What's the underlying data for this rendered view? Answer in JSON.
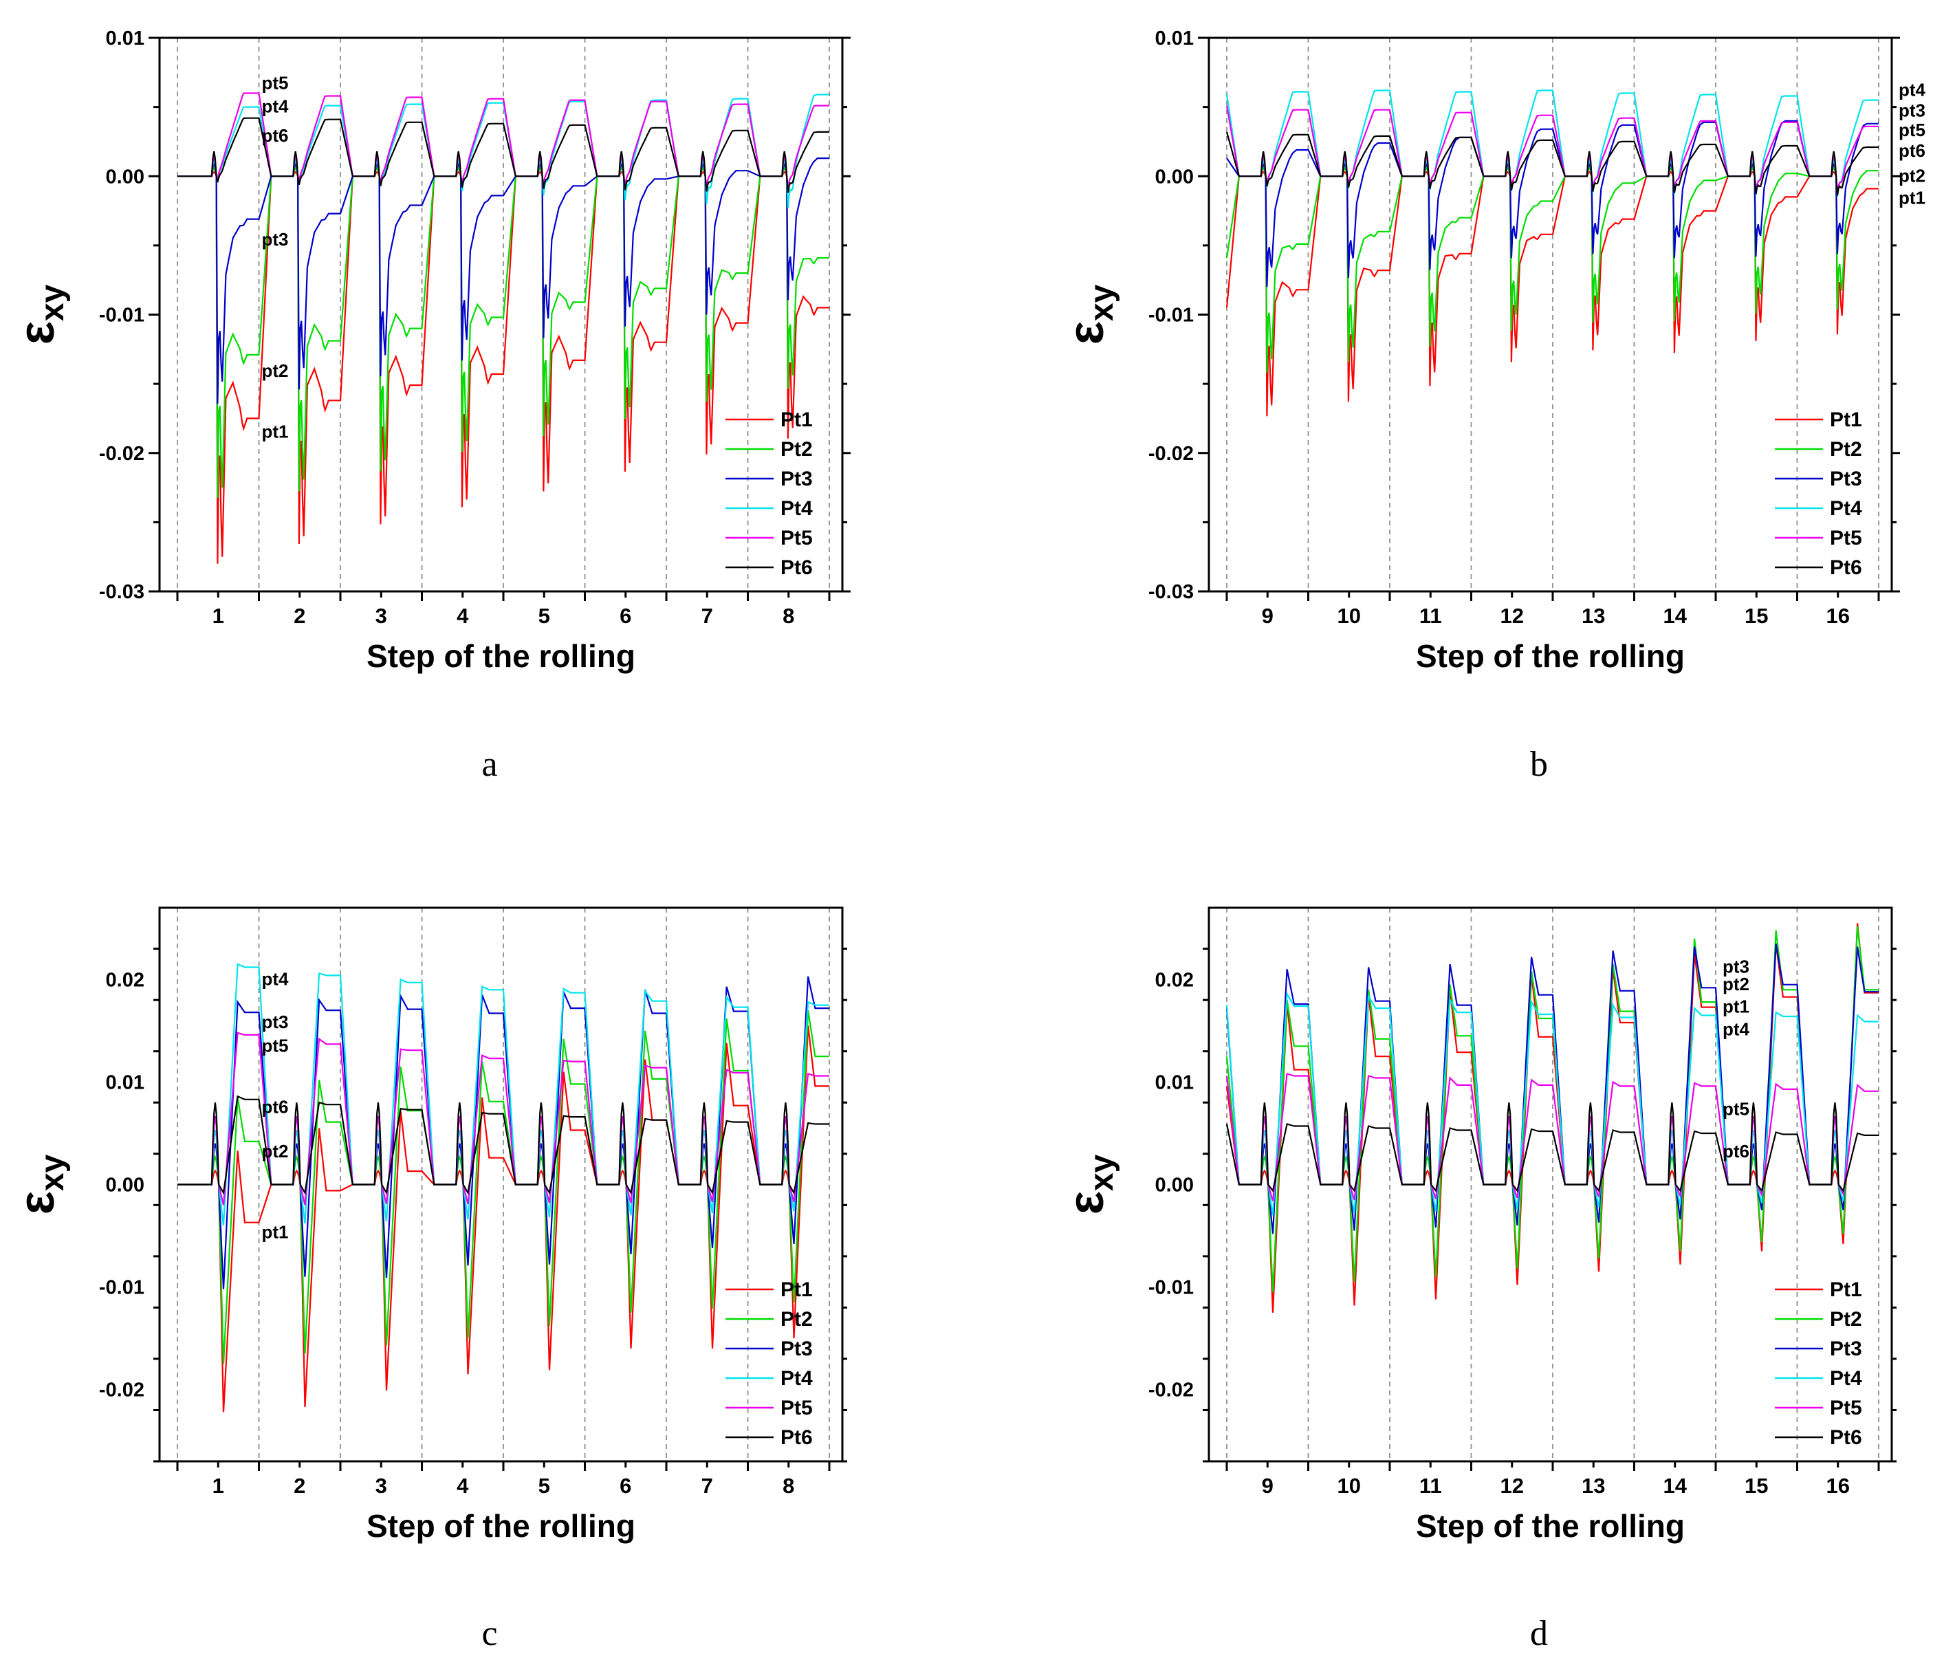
{
  "figure": {
    "panel_letters": [
      "a",
      "b",
      "c",
      "d"
    ]
  },
  "colors": {
    "Pt1": "#ff0000",
    "Pt2": "#00dd00",
    "Pt3": "#0000cc",
    "Pt4": "#00e5ee",
    "Pt5": "#ee00ee",
    "Pt6": "#000000",
    "axis": "#000000",
    "step_divider": "#999999"
  },
  "chart_data": [
    {
      "id": "a",
      "type": "line",
      "title": "",
      "ylabel_main": "ε",
      "ylabel_sub": "xy",
      "xlabel": "Step of the rolling",
      "ylim": [
        -0.03,
        0.01
      ],
      "yticks": [
        0.01,
        0.0,
        -0.01,
        -0.02,
        -0.03
      ],
      "ytick_labels": [
        "0.01",
        "0.00",
        "-0.01",
        "-0.02",
        "-0.03"
      ],
      "steps": [
        "1",
        "2",
        "3",
        "4",
        "5",
        "6",
        "7",
        "8"
      ],
      "legend": [
        "Pt1",
        "Pt2",
        "Pt3",
        "Pt4",
        "Pt5",
        "Pt6"
      ],
      "legend_position": "bottom-right",
      "start_levels": [
        0,
        0,
        0,
        0,
        0,
        0
      ],
      "series": [
        {
          "name": "Pt1",
          "min": [
            -0.0295,
            -0.028,
            -0.0265,
            -0.0252,
            -0.024,
            -0.0225,
            -0.0212,
            -0.02
          ],
          "final": [
            -0.0175,
            -0.0162,
            -0.0151,
            -0.0143,
            -0.0133,
            -0.012,
            -0.0106,
            -0.0095
          ]
        },
        {
          "name": "Pt2",
          "min": [
            -0.0245,
            -0.024,
            -0.0225,
            -0.021,
            -0.0198,
            -0.0185,
            -0.0172,
            -0.0162
          ],
          "final": [
            -0.0129,
            -0.0119,
            -0.011,
            -0.0102,
            -0.0091,
            -0.0081,
            -0.007,
            -0.0059
          ]
        },
        {
          "name": "Pt3",
          "min": [
            -0.0174,
            -0.0163,
            -0.0153,
            -0.0141,
            -0.0124,
            -0.0115,
            -0.0106,
            -0.0095
          ],
          "final": [
            -0.0031,
            -0.0027,
            -0.0021,
            -0.0014,
            -0.0007,
            -0.0002,
            0.0004,
            0.0013
          ]
        },
        {
          "name": "Pt4",
          "min": [
            -0.0002,
            -0.0005,
            -0.0008,
            -0.0012,
            -0.0015,
            -0.0019,
            -0.0022,
            -0.0025
          ],
          "final": [
            0.005,
            0.0051,
            0.0052,
            0.0053,
            0.0054,
            0.0055,
            0.0056,
            0.0059
          ]
        },
        {
          "name": "Pt5",
          "min": [
            -0.0002,
            -0.0004,
            -0.0005,
            -0.0006,
            -0.0007,
            -0.0008,
            -0.0009,
            -0.001
          ],
          "final": [
            0.006,
            0.0058,
            0.0057,
            0.0056,
            0.0055,
            0.0054,
            0.0052,
            0.0051
          ]
        },
        {
          "name": "Pt6",
          "min": [
            -0.0005,
            -0.0007,
            -0.0008,
            -0.0009,
            -0.001,
            -0.0011,
            -0.0012,
            -0.0013
          ],
          "final": [
            0.0042,
            0.0041,
            0.0039,
            0.0038,
            0.0037,
            0.0035,
            0.0033,
            0.0032
          ]
        }
      ],
      "annotations": [
        {
          "text": "pt5",
          "step": 1,
          "value": 0.0067
        },
        {
          "text": "pt4",
          "step": 1,
          "value": 0.005
        },
        {
          "text": "pt6",
          "step": 1,
          "value": 0.0029
        },
        {
          "text": "pt3",
          "step": 1,
          "value": -0.0046
        },
        {
          "text": "pt2",
          "step": 1,
          "value": -0.0141
        },
        {
          "text": "pt1",
          "step": 1,
          "value": -0.0185
        }
      ]
    },
    {
      "id": "b",
      "type": "line",
      "title": "",
      "ylabel_main": "ε",
      "ylabel_sub": "xy",
      "xlabel": "Step of the rolling",
      "ylim": [
        -0.03,
        0.01
      ],
      "yticks": [
        0.01,
        0.0,
        -0.01,
        -0.02,
        -0.03
      ],
      "ytick_labels": [
        "0.01",
        "0.00",
        "-0.01",
        "-0.02",
        "-0.03"
      ],
      "steps": [
        "9",
        "10",
        "11",
        "12",
        "13",
        "14",
        "15",
        "16"
      ],
      "legend": [
        "Pt1",
        "Pt2",
        "Pt3",
        "Pt4",
        "Pt5",
        "Pt6"
      ],
      "legend_position": "bottom-right",
      "start_levels": [
        -0.0095,
        -0.0059,
        0.0013,
        0.0059,
        0.0051,
        0.0032
      ],
      "series": [
        {
          "name": "Pt1",
          "min": [
            -0.0183,
            -0.0172,
            -0.016,
            -0.0142,
            -0.0133,
            -0.0135,
            -0.0126,
            -0.0121
          ],
          "final": [
            -0.0082,
            -0.0068,
            -0.0056,
            -0.0042,
            -0.0031,
            -0.0025,
            -0.0015,
            -0.0009
          ]
        },
        {
          "name": "Pt2",
          "min": [
            -0.015,
            -0.0142,
            -0.013,
            -0.0118,
            -0.0112,
            -0.0111,
            -0.0105,
            -0.0102
          ],
          "final": [
            -0.0049,
            -0.004,
            -0.003,
            -0.0018,
            -0.0005,
            -0.0003,
            0.0002,
            0.0004
          ]
        },
        {
          "name": "Pt3",
          "min": [
            -0.0085,
            -0.0078,
            -0.0072,
            -0.0063,
            -0.006,
            -0.0063,
            -0.0062,
            -0.006
          ],
          "final": [
            0.0019,
            0.0024,
            0.0028,
            0.0034,
            0.0037,
            0.0039,
            0.004,
            0.0038
          ]
        },
        {
          "name": "Pt4",
          "min": [
            -0.0009,
            -0.001,
            -0.0011,
            -0.0012,
            -0.0013,
            -0.0014,
            -0.0015,
            -0.0016
          ],
          "final": [
            0.0061,
            0.0062,
            0.0061,
            0.0062,
            0.006,
            0.0059,
            0.0058,
            0.0055
          ]
        },
        {
          "name": "Pt5",
          "min": [
            -0.0006,
            -0.0007,
            -0.0008,
            -0.0009,
            -0.001,
            -0.0011,
            -0.0012,
            -0.0013
          ],
          "final": [
            0.0048,
            0.0048,
            0.0046,
            0.0044,
            0.0042,
            0.004,
            0.0039,
            0.0036
          ]
        },
        {
          "name": "Pt6",
          "min": [
            -0.0008,
            -0.0009,
            -0.001,
            -0.0011,
            -0.0012,
            -0.0013,
            -0.0014,
            -0.0015
          ],
          "final": [
            0.003,
            0.0029,
            0.0028,
            0.0026,
            0.0025,
            0.0023,
            0.0022,
            0.0021
          ]
        }
      ],
      "annotations": [
        {
          "text": "pt4",
          "step": 8,
          "value": 0.0062
        },
        {
          "text": "pt3",
          "step": 8,
          "value": 0.0047
        },
        {
          "text": "pt5",
          "step": 8,
          "value": 0.0033
        },
        {
          "text": "pt6",
          "step": 8,
          "value": 0.0018
        },
        {
          "text": "pt2",
          "step": 8,
          "value": 0.0
        },
        {
          "text": "pt1",
          "step": 8,
          "value": -0.0016
        }
      ]
    },
    {
      "id": "c",
      "type": "line",
      "title": "",
      "ylabel_main": "ε",
      "ylabel_sub": "xy",
      "xlabel": "Step of the rolling",
      "ylim": [
        -0.027,
        0.027
      ],
      "yticks": [
        0.02,
        0.01,
        0.0,
        -0.01,
        -0.02
      ],
      "ytick_labels": [
        "0.02",
        "0.01",
        "0.00",
        "-0.01",
        "-0.02"
      ],
      "steps": [
        "1",
        "2",
        "3",
        "4",
        "5",
        "6",
        "7",
        "8"
      ],
      "legend": [
        "Pt1",
        "Pt2",
        "Pt3",
        "Pt4",
        "Pt5",
        "Pt6"
      ],
      "legend_position": "bottom-right",
      "start_levels": [
        0,
        0,
        0,
        0,
        0,
        0
      ],
      "series": [
        {
          "name": "Pt1",
          "min": [
            -0.0222,
            -0.0217,
            -0.0201,
            -0.0185,
            -0.0181,
            -0.016,
            -0.016,
            -0.015
          ],
          "peak": [
            0.0033,
            0.0055,
            0.0072,
            0.0085,
            0.011,
            0.0122,
            0.0138,
            0.0155
          ],
          "final": [
            -0.0037,
            -0.0006,
            0.0013,
            0.0026,
            0.0053,
            0.0063,
            0.0077,
            0.0096
          ]
        },
        {
          "name": "Pt2",
          "min": [
            -0.0175,
            -0.0165,
            -0.0157,
            -0.015,
            -0.0138,
            -0.0125,
            -0.0121,
            -0.0115
          ],
          "peak": [
            0.0085,
            0.0102,
            0.0115,
            0.012,
            0.0142,
            0.015,
            0.0162,
            0.017
          ],
          "final": [
            0.0042,
            0.0061,
            0.0072,
            0.0081,
            0.0098,
            0.0103,
            0.0111,
            0.0125
          ]
        },
        {
          "name": "Pt3",
          "min": [
            -0.0102,
            -0.009,
            -0.0091,
            -0.0079,
            -0.0078,
            -0.0068,
            -0.0062,
            -0.0058
          ],
          "peak": [
            0.0178,
            0.018,
            0.0184,
            0.0185,
            0.0188,
            0.019,
            0.0193,
            0.0203
          ],
          "final": [
            0.0168,
            0.017,
            0.0171,
            0.0167,
            0.0172,
            0.0167,
            0.0169,
            0.0172
          ]
        },
        {
          "name": "Pt4",
          "min": [
            -0.004,
            -0.0038,
            -0.0036,
            -0.0034,
            -0.0032,
            -0.003,
            -0.0028,
            -0.0026
          ],
          "peak": [
            0.0215,
            0.0206,
            0.02,
            0.0193,
            0.0191,
            0.0189,
            0.0183,
            0.0178
          ],
          "final": [
            0.0212,
            0.0204,
            0.0197,
            0.019,
            0.0187,
            0.0179,
            0.0173,
            0.0175
          ]
        },
        {
          "name": "Pt5",
          "min": [
            -0.002,
            -0.002,
            -0.0019,
            -0.0019,
            -0.0018,
            -0.0018,
            -0.0017,
            -0.0017
          ],
          "peak": [
            0.0148,
            0.0142,
            0.0132,
            0.0126,
            0.0121,
            0.0116,
            0.0112,
            0.0108
          ],
          "final": [
            0.0146,
            0.0137,
            0.0131,
            0.0123,
            0.012,
            0.0114,
            0.0109,
            0.0106
          ]
        },
        {
          "name": "Pt6",
          "min": [
            -0.0008,
            -0.0008,
            -0.0008,
            -0.0008,
            -0.0008,
            -0.0008,
            -0.0008,
            -0.0008
          ],
          "peak": [
            0.0086,
            0.008,
            0.0074,
            0.007,
            0.0067,
            0.0064,
            0.0062,
            0.006
          ],
          "final": [
            0.0083,
            0.0078,
            0.0073,
            0.0069,
            0.0066,
            0.0063,
            0.0061,
            0.0059
          ]
        }
      ],
      "annotations": [
        {
          "text": "pt4",
          "step": 1,
          "value": 0.02
        },
        {
          "text": "pt3",
          "step": 1,
          "value": 0.0158
        },
        {
          "text": "pt5",
          "step": 1,
          "value": 0.0135
        },
        {
          "text": "pt6",
          "step": 1,
          "value": 0.0075
        },
        {
          "text": "pt2",
          "step": 1,
          "value": 0.0032
        },
        {
          "text": "pt1",
          "step": 1,
          "value": -0.0047
        }
      ]
    },
    {
      "id": "d",
      "type": "line",
      "title": "",
      "ylabel_main": "ε",
      "ylabel_sub": "xy",
      "xlabel": "Step of the rolling",
      "ylim": [
        -0.027,
        0.027
      ],
      "yticks": [
        0.02,
        0.01,
        0.0,
        -0.01,
        -0.02
      ],
      "ytick_labels": [
        "0.02",
        "0.01",
        "0.00",
        "-0.01",
        "-0.02"
      ],
      "steps": [
        "9",
        "10",
        "11",
        "12",
        "13",
        "14",
        "15",
        "16"
      ],
      "legend": [
        "Pt1",
        "Pt2",
        "Pt3",
        "Pt4",
        "Pt5",
        "Pt6"
      ],
      "legend_position": "bottom-right",
      "start_levels": [
        0.0096,
        0.0125,
        0.0172,
        0.0175,
        0.0106,
        0.0059
      ],
      "series": [
        {
          "name": "Pt1",
          "min": [
            -0.0125,
            -0.0118,
            -0.0112,
            -0.0098,
            -0.0085,
            -0.0078,
            -0.0065,
            -0.0058
          ],
          "peak": [
            0.0176,
            0.0185,
            0.019,
            0.0205,
            0.021,
            0.0225,
            0.0235,
            0.0255
          ],
          "final": [
            0.0112,
            0.0125,
            0.0129,
            0.0144,
            0.0158,
            0.0173,
            0.0183,
            0.0187
          ]
        },
        {
          "name": "Pt2",
          "min": [
            -0.0105,
            -0.0095,
            -0.009,
            -0.0082,
            -0.0072,
            -0.0065,
            -0.0056,
            -0.0048
          ],
          "peak": [
            0.018,
            0.019,
            0.0195,
            0.0208,
            0.0215,
            0.024,
            0.0248,
            0.0252
          ],
          "final": [
            0.0135,
            0.0142,
            0.0145,
            0.0162,
            0.0169,
            0.0178,
            0.019,
            0.019
          ]
        },
        {
          "name": "Pt3",
          "min": [
            -0.0048,
            -0.0045,
            -0.0042,
            -0.004,
            -0.0037,
            -0.0034,
            -0.0025,
            -0.0025
          ],
          "peak": [
            0.021,
            0.0212,
            0.0215,
            0.0222,
            0.0228,
            0.0232,
            0.0235,
            0.0232
          ],
          "final": [
            0.0176,
            0.0179,
            0.0175,
            0.0185,
            0.0189,
            0.0192,
            0.0195,
            0.0188
          ]
        },
        {
          "name": "Pt4",
          "min": [
            -0.003,
            -0.0028,
            -0.0026,
            -0.0024,
            -0.0022,
            -0.002,
            -0.0018,
            -0.0016
          ],
          "peak": [
            0.0186,
            0.0184,
            0.018,
            0.0178,
            0.0175,
            0.0172,
            0.0168,
            0.0165
          ],
          "final": [
            0.0174,
            0.0172,
            0.0168,
            0.0166,
            0.0163,
            0.0165,
            0.0164,
            0.0159
          ]
        },
        {
          "name": "Pt5",
          "min": [
            -0.0016,
            -0.0015,
            -0.0014,
            -0.0013,
            -0.0012,
            -0.0011,
            -0.001,
            -0.0009
          ],
          "peak": [
            0.0108,
            0.0106,
            0.0104,
            0.0102,
            0.01,
            0.0099,
            0.0098,
            0.0097
          ],
          "final": [
            0.0106,
            0.0104,
            0.0097,
            0.0097,
            0.0096,
            0.0096,
            0.0093,
            0.0091
          ]
        },
        {
          "name": "Pt6",
          "min": [
            -0.0006,
            -0.0006,
            -0.0006,
            -0.0006,
            -0.0006,
            -0.0006,
            -0.0006,
            -0.0006
          ],
          "peak": [
            0.0059,
            0.0057,
            0.0055,
            0.0054,
            0.0053,
            0.0052,
            0.0051,
            0.005
          ],
          "final": [
            0.0057,
            0.0055,
            0.0053,
            0.0052,
            0.0051,
            0.005,
            0.0049,
            0.0048
          ]
        }
      ],
      "annotations": [
        {
          "text": "pt3",
          "step": 7,
          "value": 0.0212
        },
        {
          "text": "pt2",
          "step": 7,
          "value": 0.0195
        },
        {
          "text": "pt1",
          "step": 7,
          "value": 0.0173
        },
        {
          "text": "pt4",
          "step": 7,
          "value": 0.0151
        },
        {
          "text": "pt5",
          "step": 7,
          "value": 0.0073
        },
        {
          "text": "pt6",
          "step": 7,
          "value": 0.0032
        }
      ]
    }
  ]
}
